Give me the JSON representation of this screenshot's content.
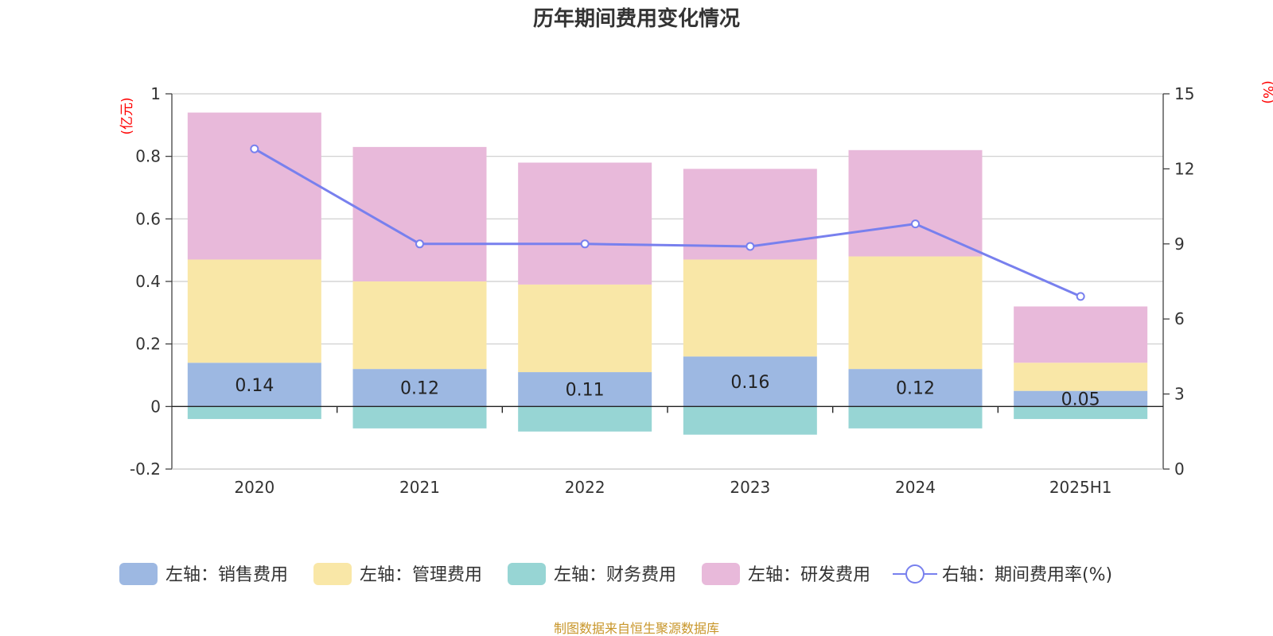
{
  "chart_data": {
    "type": "bar",
    "title": "历年期间费用变化情况",
    "categories": [
      "2020",
      "2021",
      "2022",
      "2023",
      "2024",
      "2025H1"
    ],
    "left_axis": {
      "unit": "(亿元)",
      "ylim": [
        -0.2,
        1
      ],
      "ticks": [
        -0.2,
        0,
        0.2,
        0.4,
        0.6,
        0.8,
        1
      ],
      "tick_labels": [
        "-0.2",
        "0",
        "0.2",
        "0.4",
        "0.6",
        "0.8",
        "1"
      ]
    },
    "right_axis": {
      "unit": "(%)",
      "ylim": [
        0,
        15
      ],
      "ticks": [
        0,
        3,
        6,
        9,
        12,
        15
      ],
      "tick_labels": [
        "0",
        "3",
        "6",
        "9",
        "12",
        "15"
      ]
    },
    "series": [
      {
        "name": "左轴：销售费用",
        "axis": "left",
        "kind": "bar",
        "color": "#9db8e2",
        "values": [
          0.14,
          0.12,
          0.11,
          0.16,
          0.12,
          0.05
        ],
        "labels": [
          "0.14",
          "0.12",
          "0.11",
          "0.16",
          "0.12",
          "0.05"
        ]
      },
      {
        "name": "左轴：管理费用",
        "axis": "left",
        "kind": "bar",
        "color": "#f9e7a7",
        "values": [
          0.33,
          0.28,
          0.28,
          0.31,
          0.36,
          0.09
        ]
      },
      {
        "name": "左轴：财务费用",
        "axis": "left",
        "kind": "bar",
        "color": "#97d5d4",
        "values": [
          -0.04,
          -0.07,
          -0.08,
          -0.09,
          -0.07,
          -0.04
        ]
      },
      {
        "name": "左轴：研发费用",
        "axis": "left",
        "kind": "bar",
        "color": "#e8b9da",
        "values": [
          0.47,
          0.43,
          0.39,
          0.29,
          0.34,
          0.18
        ]
      },
      {
        "name": "右轴：期间费用率(%)",
        "axis": "right",
        "kind": "line",
        "color": "#7880ee",
        "values": [
          12.8,
          9.0,
          9.0,
          8.9,
          9.8,
          6.9
        ]
      }
    ],
    "legend": "bottom",
    "grid": true
  },
  "source": "制图数据来自恒生聚源数据库"
}
